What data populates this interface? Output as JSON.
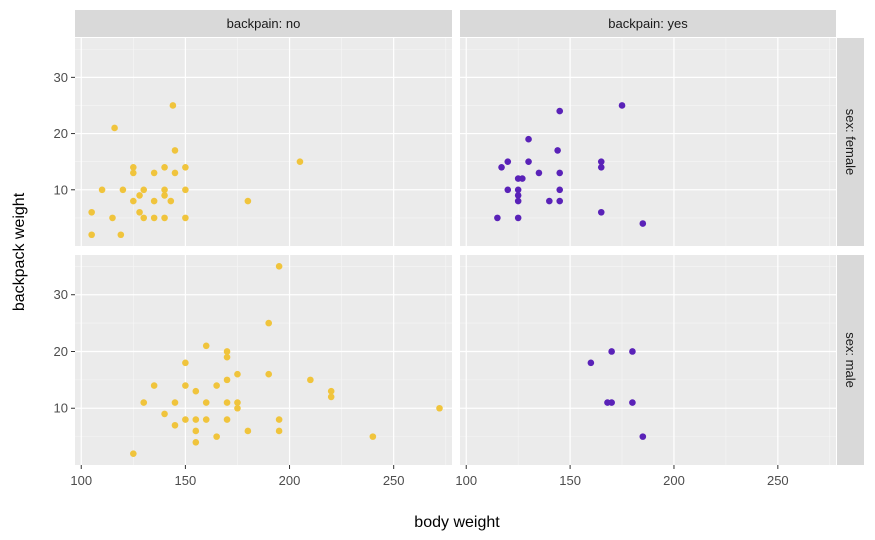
{
  "chart_data": {
    "type": "scatter",
    "facet_cols": {
      "variable": "backpain",
      "labels": [
        "backpain: no",
        "backpain: yes"
      ]
    },
    "facet_rows": {
      "variable": "sex",
      "labels": [
        "sex: female",
        "sex: male"
      ]
    },
    "xlabel": "body weight",
    "ylabel": "backpack weight",
    "x_ticks": [
      100,
      150,
      200,
      250
    ],
    "y_ticks": [
      10,
      20,
      30
    ],
    "xlim": [
      97,
      278
    ],
    "ylim": [
      0,
      37
    ],
    "grid": true,
    "legend": "none",
    "colors": {
      "backpain: no": "#F0C43C",
      "backpain: yes": "#5A22B8"
    },
    "panels": [
      {
        "row": "sex: female",
        "col": "backpain: no",
        "points": [
          [
            105,
            6
          ],
          [
            105,
            2
          ],
          [
            110,
            10
          ],
          [
            115,
            5
          ],
          [
            116,
            21
          ],
          [
            119,
            2
          ],
          [
            120,
            10
          ],
          [
            125,
            14
          ],
          [
            125,
            13
          ],
          [
            125,
            8
          ],
          [
            128,
            6
          ],
          [
            128,
            9
          ],
          [
            130,
            5
          ],
          [
            130,
            10
          ],
          [
            135,
            13
          ],
          [
            135,
            8
          ],
          [
            135,
            5
          ],
          [
            140,
            14
          ],
          [
            140,
            9
          ],
          [
            140,
            10
          ],
          [
            144,
            25
          ],
          [
            145,
            17
          ],
          [
            143,
            8
          ],
          [
            145,
            13
          ],
          [
            150,
            14
          ],
          [
            150,
            10
          ],
          [
            150,
            5
          ],
          [
            140,
            5
          ],
          [
            180,
            8
          ],
          [
            205,
            15
          ]
        ]
      },
      {
        "row": "sex: female",
        "col": "backpain: yes",
        "points": [
          [
            115,
            5
          ],
          [
            117,
            14
          ],
          [
            120,
            15
          ],
          [
            120,
            10
          ],
          [
            125,
            5
          ],
          [
            125,
            8
          ],
          [
            125,
            9
          ],
          [
            125,
            10
          ],
          [
            125,
            12
          ],
          [
            127,
            12
          ],
          [
            130,
            19
          ],
          [
            130,
            15
          ],
          [
            135,
            13
          ],
          [
            140,
            8
          ],
          [
            145,
            24
          ],
          [
            144,
            17
          ],
          [
            145,
            13
          ],
          [
            145,
            10
          ],
          [
            145,
            8
          ],
          [
            165,
            15
          ],
          [
            165,
            14
          ],
          [
            165,
            6
          ],
          [
            175,
            25
          ],
          [
            185,
            4
          ]
        ]
      },
      {
        "row": "sex: male",
        "col": "backpain: no",
        "points": [
          [
            125,
            2
          ],
          [
            130,
            11
          ],
          [
            135,
            14
          ],
          [
            140,
            9
          ],
          [
            145,
            11
          ],
          [
            145,
            7
          ],
          [
            150,
            18
          ],
          [
            150,
            14
          ],
          [
            150,
            8
          ],
          [
            155,
            13
          ],
          [
            155,
            8
          ],
          [
            155,
            6
          ],
          [
            155,
            4
          ],
          [
            160,
            21
          ],
          [
            160,
            11
          ],
          [
            160,
            8
          ],
          [
            165,
            14
          ],
          [
            165,
            5
          ],
          [
            170,
            20
          ],
          [
            170,
            19
          ],
          [
            170,
            15
          ],
          [
            170,
            11
          ],
          [
            170,
            8
          ],
          [
            175,
            16
          ],
          [
            175,
            11
          ],
          [
            175,
            10
          ],
          [
            180,
            6
          ],
          [
            190,
            25
          ],
          [
            190,
            16
          ],
          [
            195,
            35
          ],
          [
            195,
            8
          ],
          [
            195,
            6
          ],
          [
            210,
            15
          ],
          [
            220,
            13
          ],
          [
            220,
            12
          ],
          [
            240,
            5
          ],
          [
            272,
            10
          ]
        ]
      },
      {
        "row": "sex: male",
        "col": "backpain: yes",
        "points": [
          [
            160,
            18
          ],
          [
            168,
            11
          ],
          [
            170,
            20
          ],
          [
            170,
            11
          ],
          [
            180,
            20
          ],
          [
            180,
            11
          ],
          [
            185,
            5
          ]
        ]
      }
    ]
  }
}
